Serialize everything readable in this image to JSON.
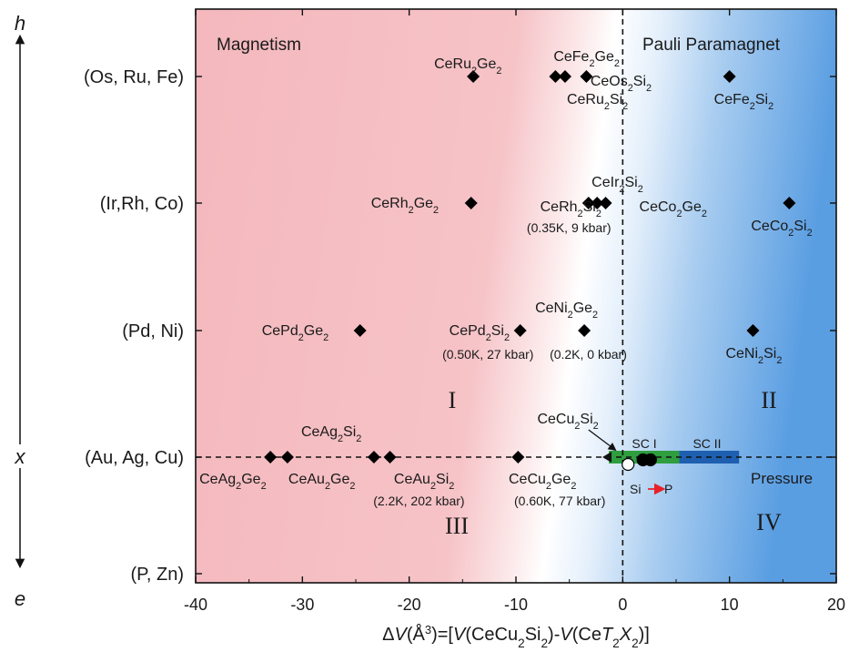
{
  "chart_data": {
    "type": "scatter",
    "title": "",
    "xlabel_parts": [
      "Δ",
      "V",
      "(Å",
      "3",
      ")=[",
      "V",
      "(CeCu",
      "2",
      "Si",
      "2",
      ")-",
      "V",
      "(Ce",
      "T",
      "2",
      "X",
      "2",
      ")]"
    ],
    "x_range": [
      -40,
      20
    ],
    "x_ticks": [
      -40,
      -30,
      -20,
      -10,
      0,
      10,
      20
    ],
    "y_categories": [
      "(Os, Ru, Fe)",
      "(Ir,Rh, Co)",
      "(Pd, Ni)",
      "(Au, Ag, Cu)",
      "(P, Zn)"
    ],
    "y_axis_end_labels": {
      "top": "h",
      "bottom": "e",
      "middle": "x"
    },
    "region_labels": {
      "magnetism": "Magnetism",
      "pauli": "Pauli Paramagnet",
      "I": "I",
      "II": "II",
      "III": "III",
      "IV": "IV",
      "pressure": "Pressure",
      "sc1": "SC I",
      "sc2": "SC II",
      "si_p_from": "Si",
      "si_p_to": "P"
    },
    "colors": {
      "magnetic": "#f4b8bd",
      "paramagnetic": "#6aa8e4",
      "marker": "#000000",
      "sc1_bar": "#2f9e3f",
      "sc2_bar": "#1f5fb0",
      "arrow_red": "#e8202a"
    },
    "points": [
      {
        "x": -14,
        "y": 0
      },
      {
        "x": -6.3,
        "y": 0
      },
      {
        "x": -5.4,
        "y": 0
      },
      {
        "x": -3.4,
        "y": 0
      },
      {
        "x": 10,
        "y": 0
      },
      {
        "x": -14.2,
        "y": 1
      },
      {
        "x": -3.2,
        "y": 1
      },
      {
        "x": -2.4,
        "y": 1
      },
      {
        "x": -1.6,
        "y": 1
      },
      {
        "x": 15.6,
        "y": 1
      },
      {
        "x": -24.6,
        "y": 2
      },
      {
        "x": -9.6,
        "y": 2
      },
      {
        "x": -3.6,
        "y": 2
      },
      {
        "x": 12.2,
        "y": 2
      },
      {
        "x": -33,
        "y": 3
      },
      {
        "x": -31.4,
        "y": 3
      },
      {
        "x": -23.3,
        "y": 3
      },
      {
        "x": -21.8,
        "y": 3
      },
      {
        "x": -9.8,
        "y": 3
      }
    ],
    "sc_points": [
      {
        "x": 0.5,
        "y": 3,
        "style": "open"
      },
      {
        "x": 1.9,
        "y": 3,
        "style": "filled"
      },
      {
        "x": 2.6,
        "y": 3,
        "style": "filled"
      }
    ],
    "sc_bars": [
      {
        "name": "SC I",
        "x0": -1.3,
        "x1": 5.3
      },
      {
        "name": "SC II",
        "x0": 5.3,
        "x1": 10.9
      }
    ],
    "annotations": [
      {
        "text": [
          "CeRu",
          "2",
          "Ge",
          "2"
        ],
        "x": -14,
        "y": 0,
        "dx": -43,
        "dy": -14
      },
      {
        "text": [
          "CeFe",
          "2",
          "Ge",
          "2"
        ],
        "x": -5.2,
        "y": 0,
        "dx": -15,
        "dy": -22
      },
      {
        "text": [
          "CeOs",
          "2",
          "Si",
          "2"
        ],
        "x": -2.6,
        "y": 0,
        "dx": -5,
        "dy": 5
      },
      {
        "text": [
          "CeRu",
          "2",
          "Si",
          "2"
        ],
        "x": -5.4,
        "y": 0,
        "dx": 2,
        "dy": 25
      },
      {
        "text": [
          "CeFe",
          "2",
          "Si",
          "2"
        ],
        "x": 10,
        "y": 0,
        "dx": -17,
        "dy": 25
      },
      {
        "text": [
          "CeRh",
          "2",
          "Ge",
          "2"
        ],
        "x": -14.2,
        "y": 1,
        "dx": -110,
        "dy": 0
      },
      {
        "text": [
          "CeIr",
          "2",
          "Si",
          "2"
        ],
        "x": -2.4,
        "y": 1,
        "dx": -6,
        "dy": -23
      },
      {
        "text": [
          "CeRh",
          "2",
          "Si",
          "2"
        ],
        "x": -5.6,
        "y": 1,
        "dx": -25,
        "dy": 4
      },
      {
        "text": [
          "(0.35K, 9 kbar)"
        ],
        "x": -6,
        "y": 1,
        "dx": -35,
        "dy": 27
      },
      {
        "text": [
          "CeCo",
          "2",
          "Ge",
          "2"
        ],
        "x": 3,
        "y": 1,
        "dx": -17,
        "dy": 4
      },
      {
        "text": [
          "CeCo",
          "2",
          "Si",
          "2"
        ],
        "x": 15.6,
        "y": 1,
        "dx": -42,
        "dy": 25
      },
      {
        "text": [
          "CePd",
          "2",
          "Ge",
          "2"
        ],
        "x": -24.6,
        "y": 2,
        "dx": -108,
        "dy": 0
      },
      {
        "text": [
          "CePd",
          "2",
          "Si",
          "2"
        ],
        "x": -12.5,
        "y": 2,
        "dx": -44,
        "dy": 0
      },
      {
        "text": [
          "(0.50K, 27 kbar)"
        ],
        "x": -14,
        "y": 2,
        "dx": -34,
        "dy": 26
      },
      {
        "text": [
          "(0.2K, 0 kbar)"
        ],
        "x": -6.5,
        "y": 2,
        "dx": -4,
        "dy": 26
      },
      {
        "text": [
          "CeNi",
          "2",
          "Ge",
          "2"
        ],
        "x": -3.6,
        "y": 2,
        "dx": -54,
        "dy": -25
      },
      {
        "text": [
          "CeNi",
          "2",
          "Si",
          "2"
        ],
        "x": 12.2,
        "y": 2,
        "dx": -30,
        "dy": 25
      },
      {
        "text": [
          "CeAg",
          "2",
          "Si",
          "2"
        ],
        "x": -23.3,
        "y": 3,
        "dx": -80,
        "dy": -28
      },
      {
        "text": [
          "CeAg",
          "2",
          "Ge",
          "2"
        ],
        "x": -33,
        "y": 3,
        "dx": -78,
        "dy": 24
      },
      {
        "text": [
          "CeAu",
          "2",
          "Ge",
          "2"
        ],
        "x": -31.4,
        "y": 3,
        "dx": 1,
        "dy": 24
      },
      {
        "text": [
          "CeAu",
          "2",
          "Si",
          "2"
        ],
        "x": -21,
        "y": 3,
        "dx": -5,
        "dy": 24
      },
      {
        "text": [
          "(2.2K, 202 kbar)"
        ],
        "x": -22,
        "y": 3,
        "dx": -16,
        "dy": 48
      },
      {
        "text": [
          "CeCu",
          "2",
          "Ge",
          "2"
        ],
        "x": -10,
        "y": 3,
        "dx": -8,
        "dy": 24
      },
      {
        "text": [
          "(0.60K, 77 kbar)"
        ],
        "x": -10,
        "y": 3,
        "dx": -2,
        "dy": 48
      },
      {
        "text": [
          "CeCu",
          "2",
          "Si",
          "2"
        ],
        "x": -8,
        "y": 3,
        "dx": 0,
        "dy": -42
      }
    ]
  }
}
